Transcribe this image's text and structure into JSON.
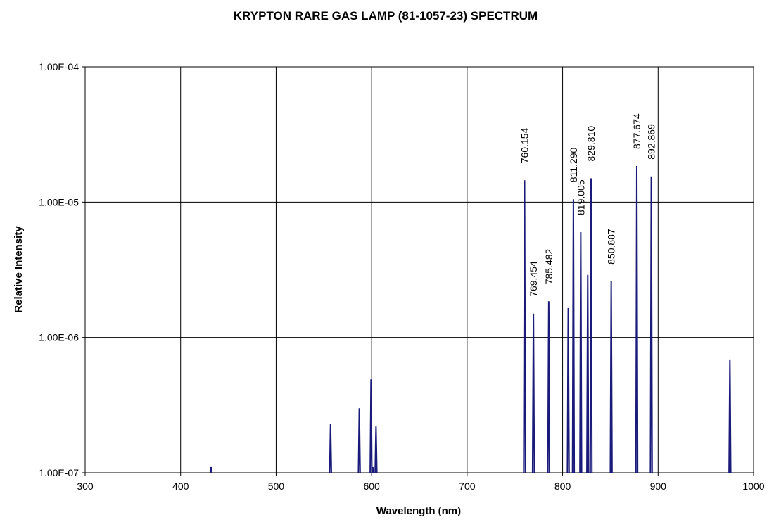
{
  "chart_data": {
    "type": "line",
    "title": "KRYPTON RARE GAS LAMP (81-1057-23) SPECTRUM",
    "xlabel": "Wavelength (nm)",
    "ylabel": "Relative Intensity",
    "xlim": [
      300,
      1000
    ],
    "ylim": [
      1e-07,
      0.0001
    ],
    "yscale": "log",
    "grid": true,
    "x_ticks": [
      "300",
      "400",
      "500",
      "600",
      "700",
      "800",
      "900",
      "1000"
    ],
    "y_ticks": [
      "1.00E-07",
      "1.00E-06",
      "1.00E-05",
      "1.00E-04"
    ],
    "series_color": "#1a1a7a",
    "peaks": [
      {
        "x": 431.9,
        "y": 1.1e-07
      },
      {
        "x": 557.0,
        "y": 2.3e-07
      },
      {
        "x": 587.1,
        "y": 3e-07
      },
      {
        "x": 599.4,
        "y": 4.9e-07
      },
      {
        "x": 601.2,
        "y": 1.1e-07
      },
      {
        "x": 604.6,
        "y": 2.2e-07
      },
      {
        "x": 760.154,
        "y": 1.45e-05,
        "label": "760.154"
      },
      {
        "x": 769.454,
        "y": 1.5e-06,
        "label": "769.454"
      },
      {
        "x": 785.482,
        "y": 1.85e-06,
        "label": "785.482"
      },
      {
        "x": 805.9,
        "y": 1.65e-06
      },
      {
        "x": 811.29,
        "y": 1.05e-05,
        "label": "811.290"
      },
      {
        "x": 819.005,
        "y": 6e-06,
        "label": "819.005"
      },
      {
        "x": 826.3,
        "y": 2.9e-06
      },
      {
        "x": 829.81,
        "y": 1.5e-05,
        "label": "829.810"
      },
      {
        "x": 850.887,
        "y": 2.6e-06,
        "label": "850.887"
      },
      {
        "x": 877.674,
        "y": 1.85e-05,
        "label": "877.674"
      },
      {
        "x": 892.869,
        "y": 1.55e-05,
        "label": "892.869"
      },
      {
        "x": 975.2,
        "y": 6.8e-07
      }
    ]
  }
}
